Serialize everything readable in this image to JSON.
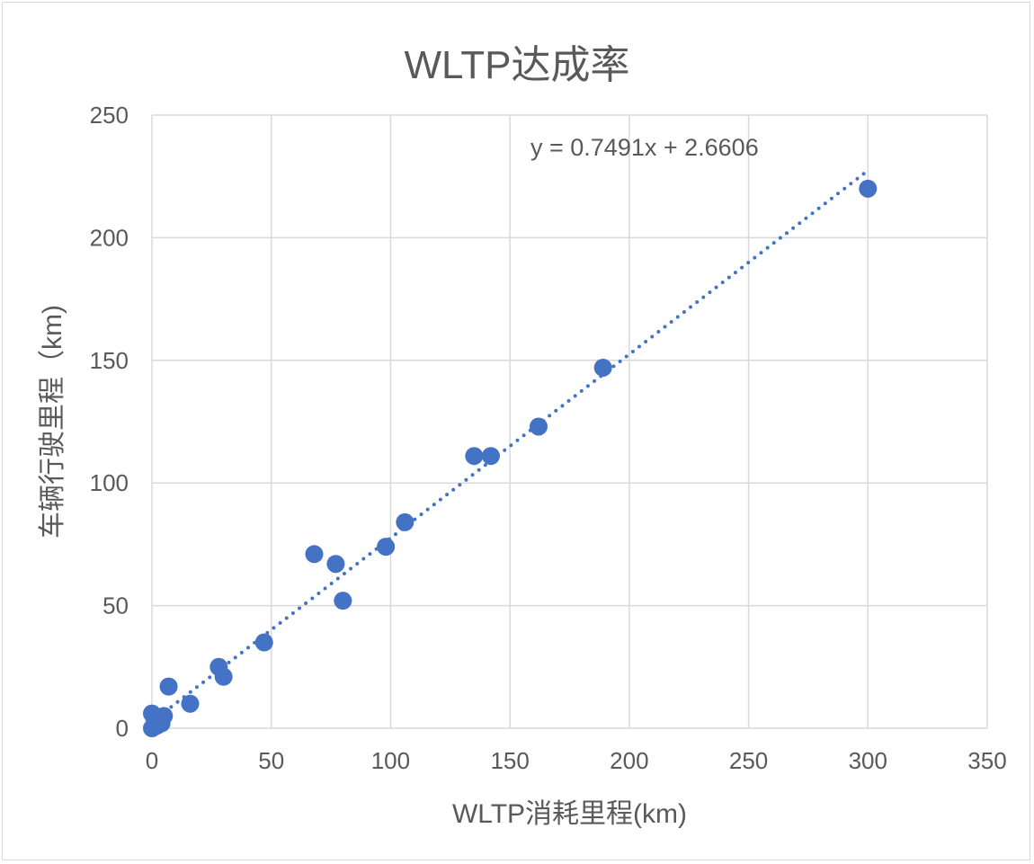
{
  "chart_data": {
    "type": "scatter",
    "title": "WLTP达成率",
    "xlabel": "WLTP消耗里程(km)",
    "ylabel": "车辆行驶里程（km)",
    "xlim": [
      0,
      350
    ],
    "ylim": [
      0,
      250
    ],
    "xticks": [
      0,
      50,
      100,
      150,
      200,
      250,
      300,
      350
    ],
    "yticks": [
      0,
      50,
      100,
      150,
      200,
      250
    ],
    "grid": true,
    "marker_color": "#4472c4",
    "points": [
      {
        "x": 0,
        "y": 0
      },
      {
        "x": 0,
        "y": 6
      },
      {
        "x": 1,
        "y": 4
      },
      {
        "x": 2,
        "y": 1
      },
      {
        "x": 4,
        "y": 2
      },
      {
        "x": 5,
        "y": 5
      },
      {
        "x": 7,
        "y": 17
      },
      {
        "x": 16,
        "y": 10
      },
      {
        "x": 28,
        "y": 25
      },
      {
        "x": 30,
        "y": 21
      },
      {
        "x": 47,
        "y": 35
      },
      {
        "x": 68,
        "y": 71
      },
      {
        "x": 77,
        "y": 67
      },
      {
        "x": 80,
        "y": 52
      },
      {
        "x": 98,
        "y": 74
      },
      {
        "x": 106,
        "y": 84
      },
      {
        "x": 135,
        "y": 111
      },
      {
        "x": 142,
        "y": 111
      },
      {
        "x": 162,
        "y": 123
      },
      {
        "x": 189,
        "y": 147
      },
      {
        "x": 300,
        "y": 220
      }
    ],
    "trendline": {
      "type": "linear",
      "slope": 0.7491,
      "intercept": 2.6606,
      "x_range": [
        0,
        300
      ],
      "style": "dotted",
      "color": "#4472c4",
      "equation_label": "y = 0.7491x + 2.6606"
    }
  }
}
